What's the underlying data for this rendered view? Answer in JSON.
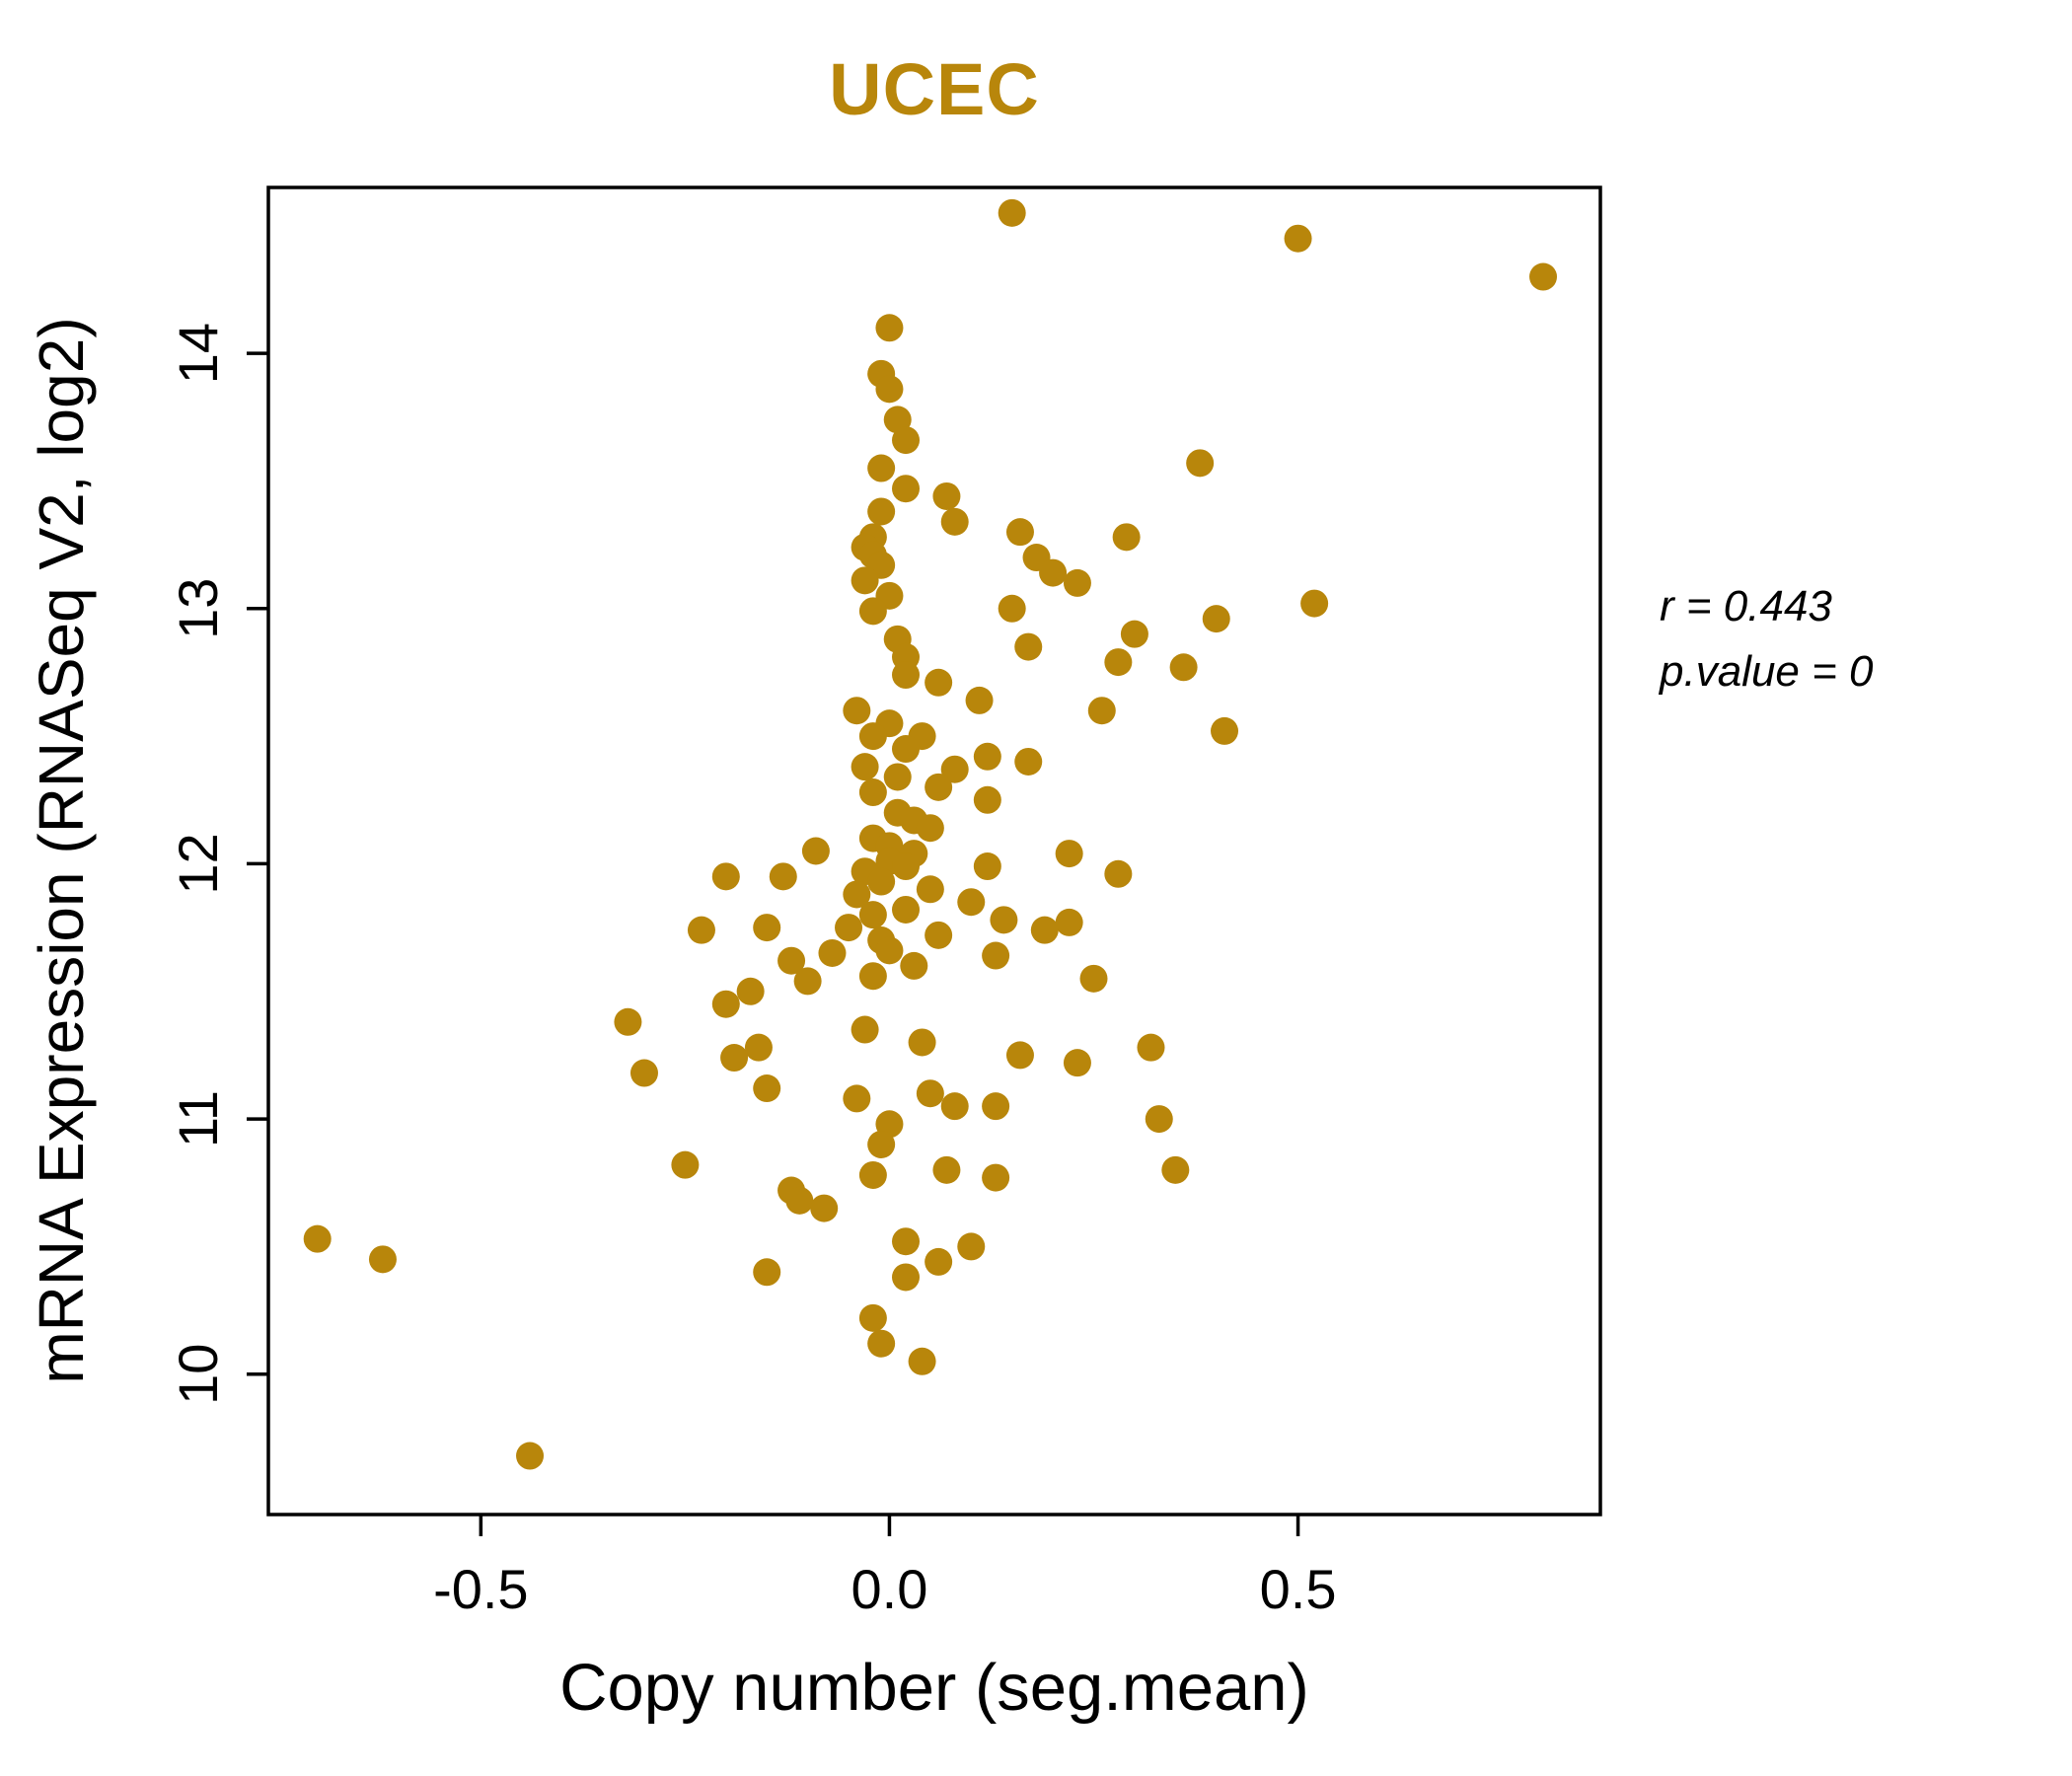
{
  "title": "UCEC",
  "colors": {
    "accent": "#B8860B",
    "point": "#B8860B",
    "axis": "#000000"
  },
  "annotation": {
    "line1": "r = 0.443",
    "line2": "p.value = 0"
  },
  "chart_data": {
    "type": "scatter",
    "title": "UCEC",
    "xlabel": "Copy number (seg.mean)",
    "ylabel": "mRNA Expression (RNASeq V2, log2)",
    "xlim": [
      -0.76,
      0.87
    ],
    "ylim": [
      9.45,
      14.65
    ],
    "xticks": [
      -0.5,
      0.0,
      0.5
    ],
    "xtick_labels": [
      "-0.5",
      "0.0",
      "0.5"
    ],
    "yticks": [
      10,
      11,
      12,
      13,
      14
    ],
    "ytick_labels": [
      "10",
      "11",
      "12",
      "13",
      "14"
    ],
    "grid": false,
    "legend": null,
    "annotations": [
      "r = 0.443",
      "p.value = 0"
    ],
    "series": [
      {
        "name": "samples",
        "color": "#B8860B",
        "points": [
          [
            0.15,
            14.55
          ],
          [
            0.5,
            14.45
          ],
          [
            0.8,
            14.3
          ],
          [
            0.0,
            14.1
          ],
          [
            -0.01,
            13.92
          ],
          [
            0.0,
            13.86
          ],
          [
            0.01,
            13.74
          ],
          [
            0.02,
            13.66
          ],
          [
            -0.01,
            13.55
          ],
          [
            0.38,
            13.57
          ],
          [
            0.02,
            13.47
          ],
          [
            0.07,
            13.44
          ],
          [
            -0.01,
            13.38
          ],
          [
            0.08,
            13.34
          ],
          [
            0.29,
            13.28
          ],
          [
            0.16,
            13.3
          ],
          [
            -0.02,
            13.28
          ],
          [
            -0.03,
            13.24
          ],
          [
            -0.02,
            13.21
          ],
          [
            -0.01,
            13.17
          ],
          [
            0.18,
            13.2
          ],
          [
            0.2,
            13.14
          ],
          [
            -0.03,
            13.11
          ],
          [
            0.23,
            13.1
          ],
          [
            0.0,
            13.05
          ],
          [
            0.52,
            13.02
          ],
          [
            0.15,
            13.0
          ],
          [
            -0.02,
            12.99
          ],
          [
            0.4,
            12.96
          ],
          [
            0.3,
            12.9
          ],
          [
            0.01,
            12.88
          ],
          [
            0.17,
            12.85
          ],
          [
            0.02,
            12.81
          ],
          [
            0.28,
            12.79
          ],
          [
            0.36,
            12.77
          ],
          [
            0.02,
            12.74
          ],
          [
            0.06,
            12.71
          ],
          [
            0.11,
            12.64
          ],
          [
            -0.04,
            12.6
          ],
          [
            0.26,
            12.6
          ],
          [
            0.0,
            12.55
          ],
          [
            0.41,
            12.52
          ],
          [
            -0.02,
            12.5
          ],
          [
            0.04,
            12.5
          ],
          [
            0.02,
            12.45
          ],
          [
            0.12,
            12.42
          ],
          [
            0.17,
            12.4
          ],
          [
            -0.03,
            12.38
          ],
          [
            0.08,
            12.37
          ],
          [
            0.01,
            12.34
          ],
          [
            0.06,
            12.3
          ],
          [
            -0.02,
            12.28
          ],
          [
            0.12,
            12.25
          ],
          [
            0.01,
            12.2
          ],
          [
            0.03,
            12.17
          ],
          [
            0.05,
            12.14
          ],
          [
            -0.02,
            12.1
          ],
          [
            0.0,
            12.07
          ],
          [
            0.03,
            12.04
          ],
          [
            -0.09,
            12.05
          ],
          [
            0.22,
            12.04
          ],
          [
            0.0,
            12.01
          ],
          [
            0.02,
            11.99
          ],
          [
            0.12,
            11.99
          ],
          [
            -0.03,
            11.97
          ],
          [
            0.28,
            11.96
          ],
          [
            -0.13,
            11.95
          ],
          [
            -0.2,
            11.95
          ],
          [
            -0.01,
            11.93
          ],
          [
            0.05,
            11.9
          ],
          [
            -0.04,
            11.88
          ],
          [
            0.1,
            11.85
          ],
          [
            0.02,
            11.82
          ],
          [
            -0.02,
            11.8
          ],
          [
            0.14,
            11.78
          ],
          [
            0.22,
            11.77
          ],
          [
            -0.05,
            11.75
          ],
          [
            -0.15,
            11.75
          ],
          [
            -0.23,
            11.74
          ],
          [
            0.06,
            11.72
          ],
          [
            0.19,
            11.74
          ],
          [
            -0.01,
            11.7
          ],
          [
            0.0,
            11.66
          ],
          [
            -0.07,
            11.65
          ],
          [
            0.13,
            11.64
          ],
          [
            -0.12,
            11.62
          ],
          [
            0.03,
            11.6
          ],
          [
            -0.02,
            11.56
          ],
          [
            0.25,
            11.55
          ],
          [
            -0.1,
            11.54
          ],
          [
            -0.17,
            11.5
          ],
          [
            -0.2,
            11.45
          ],
          [
            -0.32,
            11.38
          ],
          [
            -0.03,
            11.35
          ],
          [
            0.04,
            11.3
          ],
          [
            -0.16,
            11.28
          ],
          [
            0.16,
            11.25
          ],
          [
            -0.19,
            11.24
          ],
          [
            0.23,
            11.22
          ],
          [
            0.32,
            11.28
          ],
          [
            -0.3,
            11.18
          ],
          [
            -0.15,
            11.12
          ],
          [
            -0.04,
            11.08
          ],
          [
            0.05,
            11.1
          ],
          [
            0.08,
            11.05
          ],
          [
            0.13,
            11.05
          ],
          [
            0.0,
            10.98
          ],
          [
            0.33,
            11.0
          ],
          [
            -0.01,
            10.9
          ],
          [
            -0.25,
            10.82
          ],
          [
            -0.02,
            10.78
          ],
          [
            0.07,
            10.8
          ],
          [
            0.13,
            10.77
          ],
          [
            0.35,
            10.8
          ],
          [
            -0.12,
            10.72
          ],
          [
            -0.11,
            10.68
          ],
          [
            -0.08,
            10.65
          ],
          [
            0.02,
            10.52
          ],
          [
            -0.7,
            10.53
          ],
          [
            -0.62,
            10.45
          ],
          [
            0.06,
            10.44
          ],
          [
            0.1,
            10.5
          ],
          [
            -0.15,
            10.4
          ],
          [
            0.02,
            10.38
          ],
          [
            -0.02,
            10.22
          ],
          [
            -0.01,
            10.12
          ],
          [
            0.04,
            10.05
          ],
          [
            -0.44,
            9.68
          ]
        ]
      }
    ]
  }
}
